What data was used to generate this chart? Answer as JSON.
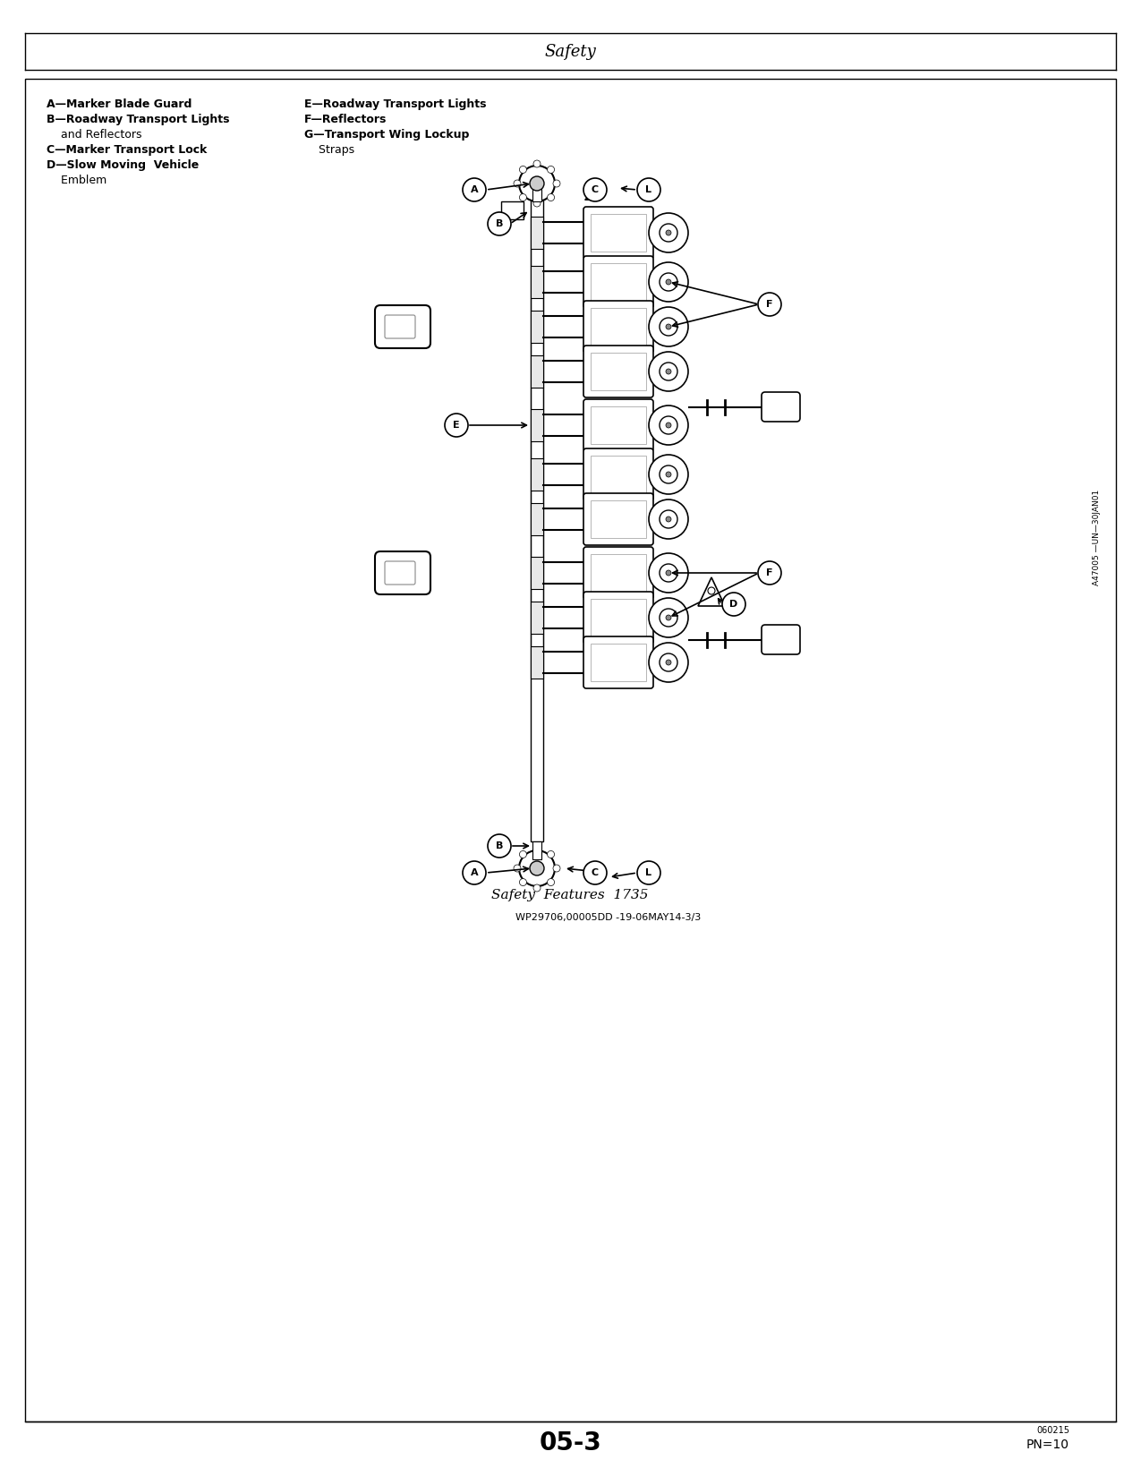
{
  "page_title": "Safety",
  "page_num": "05-3",
  "pn": "PN=10",
  "small_code": "060215",
  "wp_code": "WP29706,00005DD -19-06MAY14-3/3",
  "figure_caption": "Safety  Features  1735",
  "ref_code": "A47005 —UN—30JAN01",
  "legend_left": [
    [
      "bold",
      "A—Marker Blade Guard"
    ],
    [
      "bold",
      "B—Roadway Transport Lights"
    ],
    [
      "normal",
      "    and Reflectors"
    ],
    [
      "bold",
      "C—Marker Transport Lock"
    ],
    [
      "bold",
      "D—Slow Moving  Vehicle"
    ],
    [
      "normal",
      "    Emblem"
    ]
  ],
  "legend_right": [
    [
      "bold",
      "E—Roadway Transport Lights"
    ],
    [
      "bold",
      "F—Reflectors"
    ],
    [
      "bold",
      "G—Transport Wing Lockup"
    ],
    [
      "normal",
      "    Straps"
    ]
  ],
  "bg_color": "#ffffff",
  "border_color": "#000000"
}
